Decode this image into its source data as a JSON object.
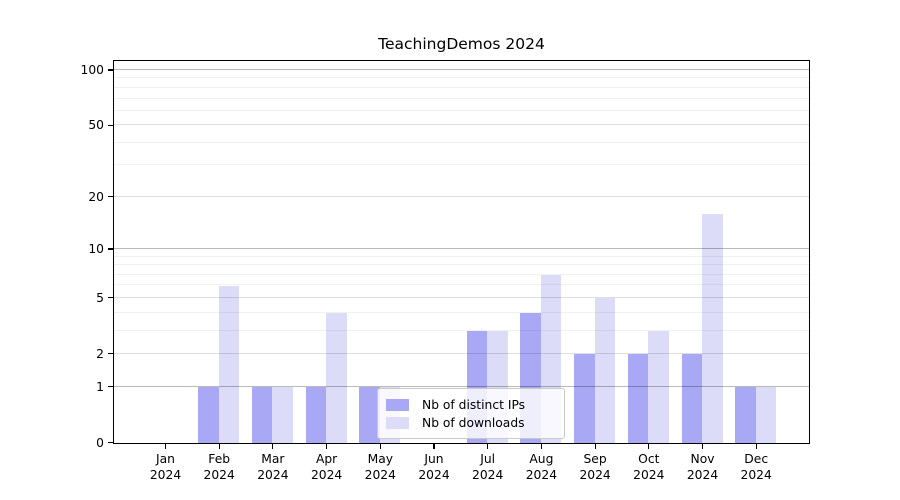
{
  "chart_data": {
    "type": "bar",
    "title": "TeachingDemos 2024",
    "categories": [
      {
        "month": "Jan",
        "year": "2024"
      },
      {
        "month": "Feb",
        "year": "2024"
      },
      {
        "month": "Mar",
        "year": "2024"
      },
      {
        "month": "Apr",
        "year": "2024"
      },
      {
        "month": "May",
        "year": "2024"
      },
      {
        "month": "Jun",
        "year": "2024"
      },
      {
        "month": "Jul",
        "year": "2024"
      },
      {
        "month": "Aug",
        "year": "2024"
      },
      {
        "month": "Sep",
        "year": "2024"
      },
      {
        "month": "Oct",
        "year": "2024"
      },
      {
        "month": "Nov",
        "year": "2024"
      },
      {
        "month": "Dec",
        "year": "2024"
      }
    ],
    "series": [
      {
        "name": "Nb of distinct IPs",
        "color": "#a8a8f5",
        "values": [
          0,
          1,
          1,
          1,
          1,
          0,
          3,
          4,
          2,
          2,
          2,
          1
        ]
      },
      {
        "name": "Nb of downloads",
        "color": "#dcdcf8",
        "values": [
          0,
          6,
          1,
          4,
          1,
          0,
          3,
          7,
          5,
          3,
          16,
          1
        ]
      }
    ],
    "xlabel": "",
    "ylabel": "",
    "y_axis": {
      "scale": "log1p",
      "ticks": [
        100,
        50,
        20,
        10,
        5,
        2,
        1,
        0
      ],
      "emphasized_gridlines": [
        1,
        10,
        100
      ],
      "mid_gridlines": [
        2,
        5,
        20,
        50
      ],
      "minor_gridlines": [
        3,
        4,
        6,
        7,
        8,
        9,
        30,
        40,
        60,
        70,
        80,
        90
      ],
      "range": [
        0,
        100
      ]
    },
    "legend": {
      "position": "lower-center"
    },
    "grid": true,
    "colors": {
      "gridline_emphasized": "rgba(0,0,0,0.27)",
      "gridline_mid": "rgba(0,0,0,0.125)",
      "gridline_minor": "rgba(0,0,0,0.055)",
      "axis": "#000000",
      "background": "#ffffff"
    }
  }
}
